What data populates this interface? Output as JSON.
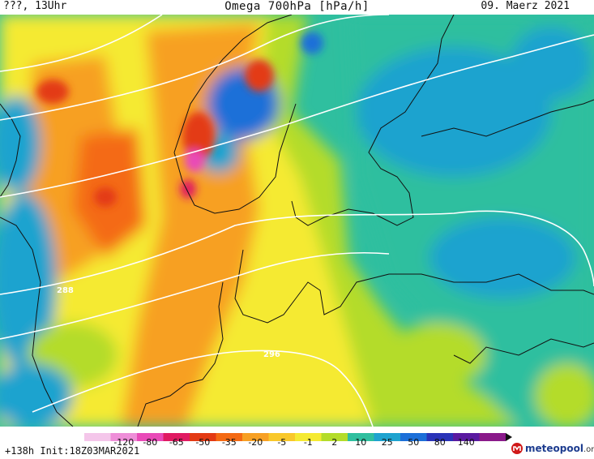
{
  "header": {
    "left": "???, 13Uhr",
    "title": "Omega 700hPa [hPa/h]",
    "date": "09. Maerz 2021"
  },
  "colorbar": {
    "ticks": [
      "-120",
      "-80",
      "-65",
      "-50",
      "-35",
      "-20",
      "-5",
      "-1",
      "2",
      "10",
      "25",
      "50",
      "80",
      "140"
    ],
    "colors": [
      "#f4c6ea",
      "#ee8ed8",
      "#e94ab8",
      "#e01a62",
      "#e33a14",
      "#f46a14",
      "#f7a024",
      "#f9c82a",
      "#f5ea32",
      "#b4dc2a",
      "#2fbf9f",
      "#1ea3cf",
      "#1c6fd8",
      "#2a33b8",
      "#5a1aa0",
      "#8a1a8a"
    ]
  },
  "isolines": {
    "labels": [
      "288",
      "296"
    ]
  },
  "footer": {
    "run": "+138h Init:18Z03MAR2021",
    "logo_main": "meteopool",
    "logo_tld": ".org"
  }
}
